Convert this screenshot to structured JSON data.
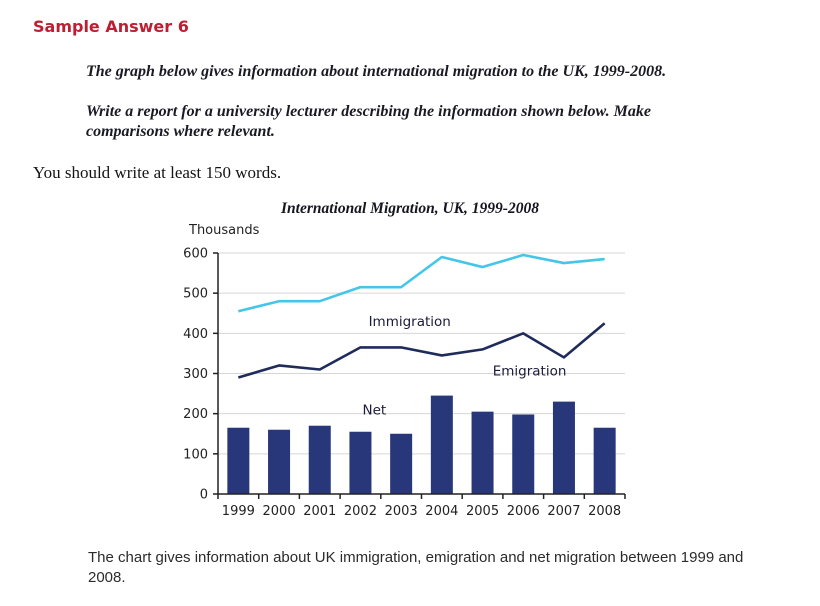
{
  "page": {
    "heading": "Sample Answer 6",
    "prompt_line1": "The graph below gives information about international migration to the UK, 1999-2008.",
    "prompt_line2": "Write a report for a university lecturer describing the information shown below. Make\ncomparisons where relevant.",
    "instruction": "You should write at least 150 words.",
    "caption": "The chart gives information about UK immigration, emigration and net migration between 1999 and\n2008."
  },
  "colors": {
    "heading_red": "#BE1E32",
    "immigration_line": "#45C6E8",
    "emigration_line": "#1F2C5B",
    "net_bar": "#273779",
    "grid": "#D6D6D6",
    "axis": "#222222",
    "chart_text": "#222222",
    "annotation_text": "#1B1B3A"
  },
  "chart_data": {
    "type": "combo",
    "title": "International Migration, UK, 1999-2008",
    "ylabel": "Thousands",
    "categories": [
      "1999",
      "2000",
      "2001",
      "2002",
      "2003",
      "2004",
      "2005",
      "2006",
      "2007",
      "2008"
    ],
    "series": [
      {
        "name": "Immigration",
        "type": "line",
        "color_key": "immigration_line",
        "values": [
          455,
          480,
          480,
          515,
          515,
          590,
          565,
          595,
          575,
          585
        ]
      },
      {
        "name": "Emigration",
        "type": "line",
        "color_key": "emigration_line",
        "values": [
          290,
          320,
          310,
          365,
          365,
          345,
          360,
          400,
          340,
          425
        ]
      },
      {
        "name": "Net",
        "type": "bar",
        "color_key": "net_bar",
        "values": [
          165,
          160,
          170,
          155,
          150,
          245,
          205,
          198,
          230,
          165
        ]
      }
    ],
    "ylim": [
      0,
      600
    ],
    "ytick_step": 100,
    "grid": true,
    "legend_position": "inline-annotations",
    "annotations": [
      {
        "text": "Immigration",
        "x_index": 3.2,
        "y_value": 418
      },
      {
        "text": "Emigration",
        "x_index": 6.25,
        "y_value": 295
      },
      {
        "text": "Net",
        "x_index": 3.05,
        "y_value": 198
      }
    ]
  }
}
